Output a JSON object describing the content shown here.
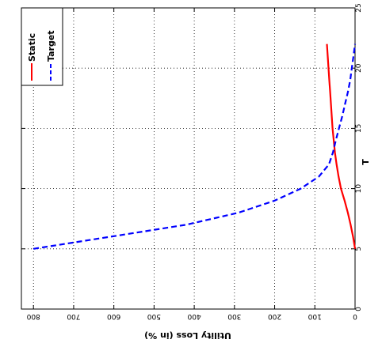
{
  "chart_data": {
    "type": "line",
    "orientation": "rotated 180 degrees",
    "title": "",
    "xlabel": "T",
    "ylabel": "Utility Loss (in %)",
    "xlim": [
      0,
      25
    ],
    "ylim": [
      0,
      830
    ],
    "xticks": [
      "0",
      "5",
      "10",
      "15",
      "20",
      "25"
    ],
    "yticks": [
      "0",
      "100",
      "200",
      "300",
      "400",
      "500",
      "600",
      "700",
      "800"
    ],
    "grid": true,
    "legend_position": "top-left",
    "series": [
      {
        "name": "Static",
        "color": "#ff0000",
        "style": "solid",
        "x": [
          5,
          6,
          7,
          8,
          9,
          10,
          11,
          12,
          13,
          14,
          15,
          16,
          17,
          18,
          19,
          20,
          21,
          22
        ],
        "y": [
          0,
          5,
          11,
          18,
          26,
          35,
          41,
          46,
          50,
          53,
          56,
          58,
          60,
          62,
          64,
          66,
          68,
          70
        ]
      },
      {
        "name": "Target",
        "color": "#0000ff",
        "style": "dashed",
        "x": [
          5,
          6,
          7,
          8,
          9,
          10,
          11,
          12,
          13,
          14,
          15,
          16,
          17,
          18,
          19,
          20,
          21,
          22
        ],
        "y": [
          800,
          610,
          420,
          290,
          200,
          135,
          90,
          65,
          55,
          48,
          40,
          32,
          25,
          18,
          12,
          8,
          4,
          0
        ]
      }
    ]
  }
}
